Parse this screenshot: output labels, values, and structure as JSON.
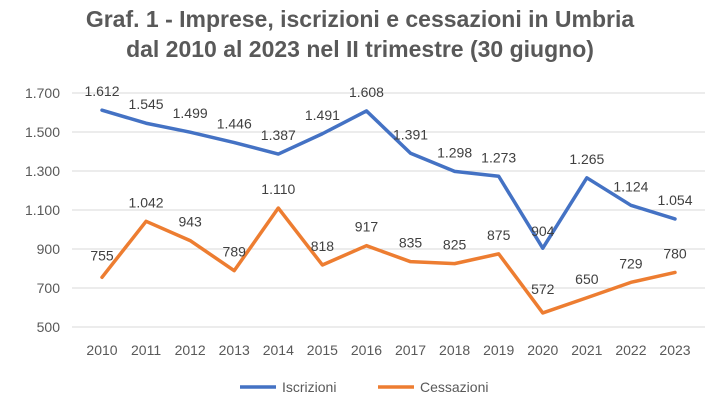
{
  "chart_data": {
    "type": "line",
    "title_lines": [
      "Graf. 1 - Imprese, iscrizioni e cessazioni in Umbria",
      "dal 2010 al 2023 nel II trimestre (30 giugno)"
    ],
    "categories": [
      "2010",
      "2011",
      "2012",
      "2013",
      "2014",
      "2015",
      "2016",
      "2017",
      "2018",
      "2019",
      "2020",
      "2021",
      "2022",
      "2023"
    ],
    "series": [
      {
        "name": "Iscrizioni",
        "color": "#4472C4",
        "values": [
          1612,
          1545,
          1499,
          1446,
          1387,
          1491,
          1608,
          1391,
          1298,
          1273,
          904,
          1265,
          1124,
          1054
        ],
        "labels": [
          "1.612",
          "1.545",
          "1.499",
          "1.446",
          "1.387",
          "1.491",
          "1.608",
          "1.391",
          "1.298",
          "1.273",
          "904",
          "1.265",
          "1.124",
          "1.054"
        ]
      },
      {
        "name": "Cessazioni",
        "color": "#ED7D31",
        "values": [
          755,
          1042,
          943,
          789,
          1110,
          818,
          917,
          835,
          825,
          875,
          572,
          650,
          729,
          780
        ],
        "labels": [
          "755",
          "1.042",
          "943",
          "789",
          "1.110",
          "818",
          "917",
          "835",
          "825",
          "875",
          "572",
          "650",
          "729",
          "780"
        ]
      }
    ],
    "ylim": [
      500,
      1700
    ],
    "yticks": [
      500,
      700,
      900,
      1100,
      1300,
      1500,
      1700
    ],
    "ytick_labels": [
      "500",
      "700",
      "900",
      "1.100",
      "1.300",
      "1.500",
      "1.700"
    ],
    "grid": true,
    "legend": "bottom"
  }
}
